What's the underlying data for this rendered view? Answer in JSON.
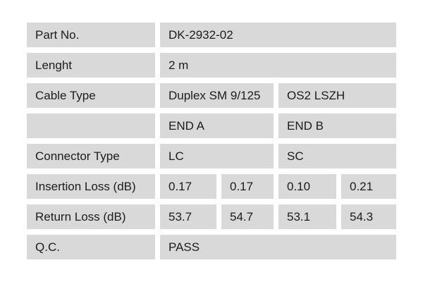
{
  "document": {
    "type": "product-specification-table",
    "colors": {
      "cell_background": "#d9d9d9",
      "gap_background": "#ffffff",
      "text": "#1c1c1c"
    },
    "table": {
      "rows": [
        {
          "label": "Part No.",
          "cells": [
            {
              "text": "DK-2932-02",
              "span": 4
            }
          ]
        },
        {
          "label": "Lenght",
          "cells": [
            {
              "text": "2 m",
              "span": 4
            }
          ]
        },
        {
          "label": "Cable Type",
          "cells": [
            {
              "text": "Duplex SM 9/125",
              "span": 2
            },
            {
              "text": "OS2 LSZH",
              "span": 2
            }
          ]
        },
        {
          "label": "",
          "cells": [
            {
              "text": "END A",
              "span": 2
            },
            {
              "text": "END B",
              "span": 2
            }
          ]
        },
        {
          "label": "Connector Type",
          "cells": [
            {
              "text": "LC",
              "span": 2
            },
            {
              "text": "SC",
              "span": 2
            }
          ]
        },
        {
          "label": "Insertion Loss (dB)",
          "cells": [
            {
              "text": "0.17",
              "span": 1
            },
            {
              "text": "0.17",
              "span": 1
            },
            {
              "text": "0.10",
              "span": 1
            },
            {
              "text": "0.21",
              "span": 1
            }
          ]
        },
        {
          "label": "Return Loss (dB)",
          "cells": [
            {
              "text": "53.7",
              "span": 1
            },
            {
              "text": "54.7",
              "span": 1
            },
            {
              "text": "53.1",
              "span": 1
            },
            {
              "text": "54.3",
              "span": 1
            }
          ]
        },
        {
          "label": "Q.C.",
          "cells": [
            {
              "text": "PASS",
              "span": 4
            }
          ]
        }
      ]
    }
  }
}
